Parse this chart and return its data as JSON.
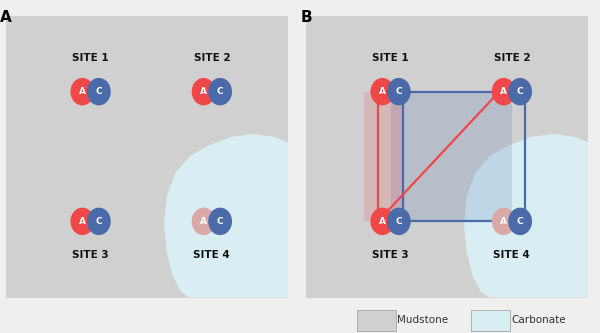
{
  "panel_A_label": "A",
  "panel_B_label": "B",
  "mudstone_color": "#d0d0d0",
  "carbonate_color": "#d8eef3",
  "bg_color": "#efefef",
  "red_color": "#f04848",
  "blue_color": "#4a6aaa",
  "red_faded": "#dba8a8",
  "site_label_fontsize": 7.5,
  "ac_fontsize": 6.5,
  "line_blue": "#4a6aaa",
  "line_red": "#f04848",
  "shade_red": "#f04848",
  "shade_blue": "#4a6aaa",
  "legend_mudstone": "Mudstone",
  "legend_carbonate": "Carbonate"
}
